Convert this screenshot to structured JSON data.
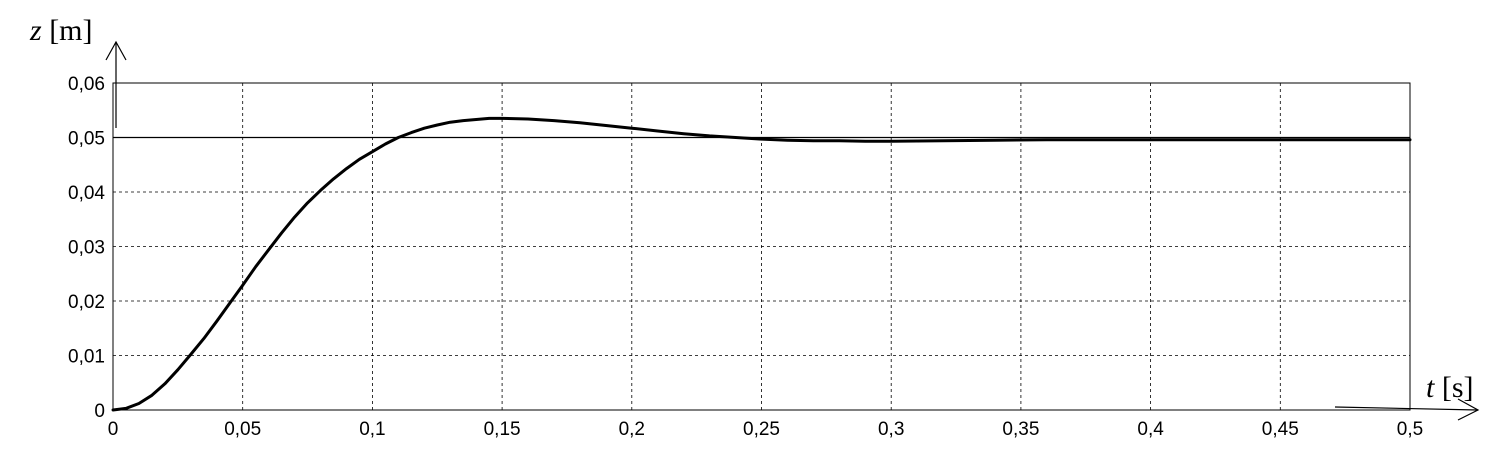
{
  "chart_data": {
    "type": "line",
    "title": "",
    "xlabel_var": "t",
    "xlabel_unit": "[s]",
    "ylabel_var": "z",
    "ylabel_unit": "[m]",
    "xlim": [
      0,
      0.5
    ],
    "ylim": [
      0,
      0.06
    ],
    "grid": true,
    "x_ticks": [
      0,
      0.05,
      0.1,
      0.15,
      0.2,
      0.25,
      0.3,
      0.35,
      0.4,
      0.45,
      0.5
    ],
    "x_tick_labels": [
      "0",
      "0,05",
      "0,1",
      "0,15",
      "0,2",
      "0,25",
      "0,3",
      "0,35",
      "0,4",
      "0,45",
      "0,5"
    ],
    "y_ticks": [
      0,
      0.01,
      0.02,
      0.03,
      0.04,
      0.05,
      0.06
    ],
    "y_tick_labels": [
      "0",
      "0,01",
      "0,02",
      "0,03",
      "0,04",
      "0,05",
      "0,06"
    ],
    "reference_line": {
      "y": 0.05
    },
    "series": [
      {
        "x": [
          0,
          0.005,
          0.01,
          0.015,
          0.02,
          0.025,
          0.03,
          0.035,
          0.04,
          0.045,
          0.05,
          0.055,
          0.06,
          0.065,
          0.07,
          0.075,
          0.08,
          0.085,
          0.09,
          0.095,
          0.1,
          0.105,
          0.11,
          0.115,
          0.12,
          0.125,
          0.13,
          0.135,
          0.14,
          0.145,
          0.15,
          0.16,
          0.17,
          0.18,
          0.19,
          0.2,
          0.21,
          0.22,
          0.23,
          0.24,
          0.25,
          0.26,
          0.27,
          0.28,
          0.29,
          0.3,
          0.32,
          0.34,
          0.36,
          0.38,
          0.4,
          0.42,
          0.44,
          0.46,
          0.48,
          0.5
        ],
        "y": [
          0,
          0.0003,
          0.0012,
          0.0027,
          0.0048,
          0.0074,
          0.0102,
          0.0131,
          0.0163,
          0.0196,
          0.0229,
          0.0263,
          0.0294,
          0.0325,
          0.0354,
          0.038,
          0.0403,
          0.0424,
          0.0443,
          0.046,
          0.0474,
          0.0488,
          0.05,
          0.0509,
          0.0517,
          0.0523,
          0.0528,
          0.0531,
          0.0533,
          0.0535,
          0.0535,
          0.0534,
          0.0531,
          0.0527,
          0.0522,
          0.0517,
          0.0512,
          0.0507,
          0.0503,
          0.05,
          0.0497,
          0.0495,
          0.0494,
          0.0494,
          0.0493,
          0.0493,
          0.0494,
          0.0495,
          0.0496,
          0.0496,
          0.0496,
          0.0496,
          0.0496,
          0.0496,
          0.0496,
          0.0496
        ]
      }
    ]
  }
}
